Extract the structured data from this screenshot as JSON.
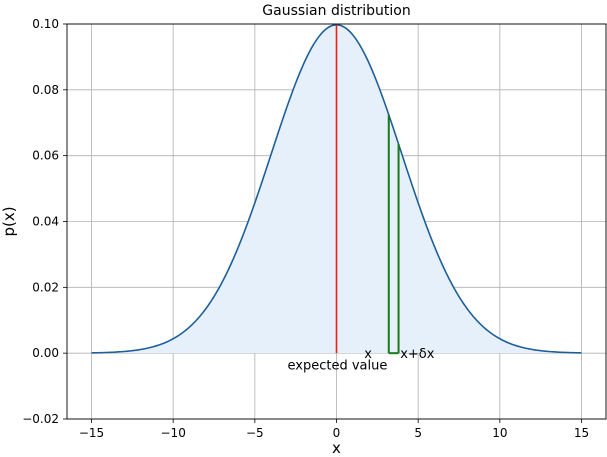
{
  "chart_data": {
    "type": "line",
    "title": "Gaussian distribution",
    "xlabel": "x",
    "ylabel": "p(x)",
    "xlim": [
      -16.5,
      16.5
    ],
    "ylim": [
      -0.02,
      0.1
    ],
    "grid": true,
    "x_ticks": [
      -15,
      -10,
      -5,
      0,
      5,
      10,
      15
    ],
    "x_tick_labels": [
      "−15",
      "−10",
      "−5",
      "0",
      "5",
      "10",
      "15"
    ],
    "y_ticks": [
      -0.02,
      0.0,
      0.02,
      0.04,
      0.06,
      0.08,
      0.1
    ],
    "y_tick_labels": [
      "−0.02",
      "0.00",
      "0.02",
      "0.04",
      "0.06",
      "0.08",
      "0.10"
    ],
    "series": [
      {
        "curve": "gaussian",
        "mean": 0,
        "std": 4,
        "x_range": [
          -15,
          15
        ],
        "color": "#1f5f99",
        "fill_color": "#e6f0fa"
      }
    ],
    "mean_line": {
      "x": 0,
      "color": "#e8221b"
    },
    "interval": {
      "x_start": 3.2,
      "x_end": 3.8,
      "color": "#1a7a1a"
    },
    "annotations": [
      {
        "text": "expected value",
        "x": -3,
        "y": -0.0035
      },
      {
        "text": "x",
        "x": 1.7,
        "y": 0.0
      },
      {
        "text": "x+δx",
        "x": 3.9,
        "y": 0.0
      }
    ]
  }
}
